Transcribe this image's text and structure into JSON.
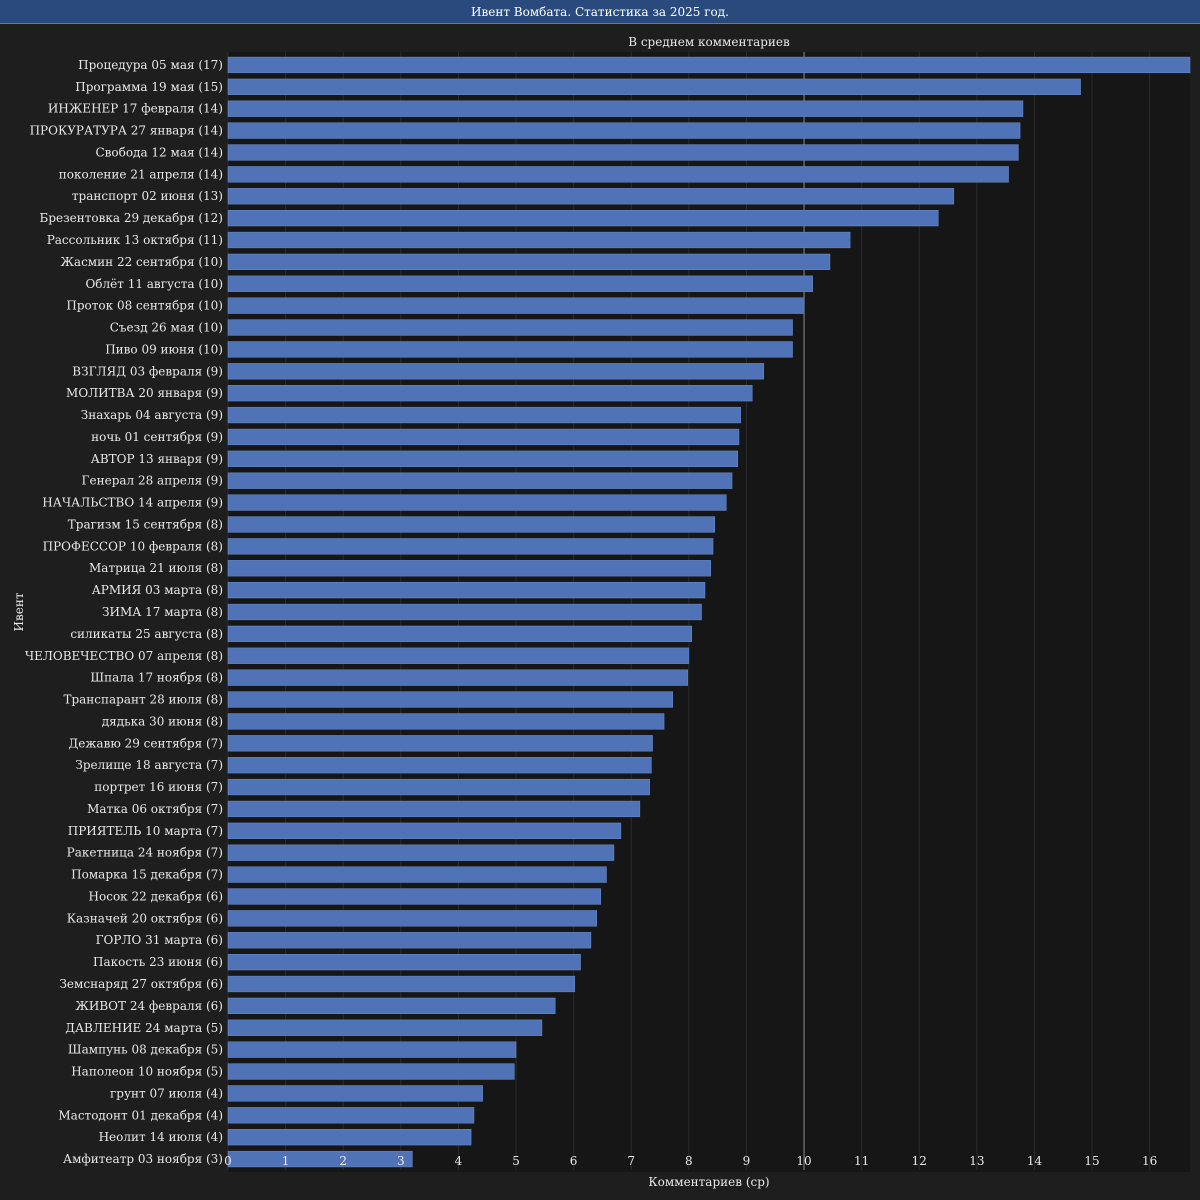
{
  "window": {
    "title": "Ивент Вомбата. Статистика за 2025 год."
  },
  "chart_data": {
    "type": "bar",
    "orientation": "horizontal",
    "title": "В среднем комментариев",
    "xlabel": "Комментариев (ср)",
    "ylabel": "Ивент",
    "xlim": [
      0,
      16.7
    ],
    "xticks": [
      0,
      1,
      2,
      3,
      4,
      5,
      6,
      7,
      8,
      9,
      10,
      11,
      12,
      13,
      14,
      15,
      16
    ],
    "reference_line": 10,
    "bar_color": "#4f73b6",
    "categories": [
      "Процедура 05 мая (17)",
      "Программа 19 мая (15)",
      "ИНЖЕНЕР 17 февраля (14)",
      "ПРОКУРАТУРА 27 января (14)",
      "Свобода 12 мая (14)",
      "поколение 21 апреля (14)",
      "транспорт 02 июня (13)",
      "Брезентовка 29 декабря (12)",
      "Рассольник 13 октября (11)",
      "Жасмин 22 сентября (10)",
      "Облёт 11 августа (10)",
      "Проток 08 сентября (10)",
      "Съезд 26 мая (10)",
      "Пиво 09 июня (10)",
      "ВЗГЛЯД 03 февраля (9)",
      "МОЛИТВА 20 января (9)",
      "Знахарь 04 августа (9)",
      "ночь 01 сентября (9)",
      "АВТОР 13 января (9)",
      "Генерал 28 апреля (9)",
      "НАЧАЛЬСТВО 14 апреля (9)",
      "Трагизм 15 сентября (8)",
      "ПРОФЕССОР 10 февраля (8)",
      "Матрица 21 июля (8)",
      "АРМИЯ 03 марта (8)",
      "ЗИМА 17 марта (8)",
      "силикаты 25 августа (8)",
      "ЧЕЛОВЕЧЕСТВО 07 апреля (8)",
      "Шпала 17 ноября (8)",
      "Транспарант 28 июля (8)",
      "дядька 30 июня (8)",
      "Дежавю 29 сентября (7)",
      "Зрелище 18 августа (7)",
      "портрет 16 июня (7)",
      "Матка 06 октября (7)",
      "ПРИЯТЕЛЬ 10 марта (7)",
      "Ракетница 24 ноября (7)",
      "Помарка 15 декабря (7)",
      "Носок 22 декабря (6)",
      "Казначей 20 октября (6)",
      "ГОРЛО 31 марта (6)",
      "Пакость 23 июня (6)",
      "Земснаряд 27 октября (6)",
      "ЖИВОТ 24 февраля (6)",
      "ДАВЛЕНИЕ 24 марта (5)",
      "Шампунь 08 декабря (5)",
      "Наполеон 10 ноября (5)",
      "грунт 07 июля (4)",
      "Мастодонт 01 декабря (4)",
      "Неолит 14 июля (4)",
      "Амфитеатр 03 ноября (3)"
    ],
    "values": [
      16.7,
      14.8,
      13.8,
      13.75,
      13.72,
      13.55,
      12.6,
      12.33,
      10.8,
      10.45,
      10.15,
      10.0,
      9.8,
      9.8,
      9.3,
      9.1,
      8.9,
      8.87,
      8.85,
      8.75,
      8.65,
      8.45,
      8.42,
      8.38,
      8.28,
      8.22,
      8.05,
      8.0,
      7.98,
      7.72,
      7.57,
      7.37,
      7.35,
      7.32,
      7.15,
      6.82,
      6.7,
      6.57,
      6.47,
      6.4,
      6.3,
      6.12,
      6.02,
      5.68,
      5.45,
      5.0,
      4.97,
      4.42,
      4.27,
      4.22,
      3.2
    ]
  }
}
